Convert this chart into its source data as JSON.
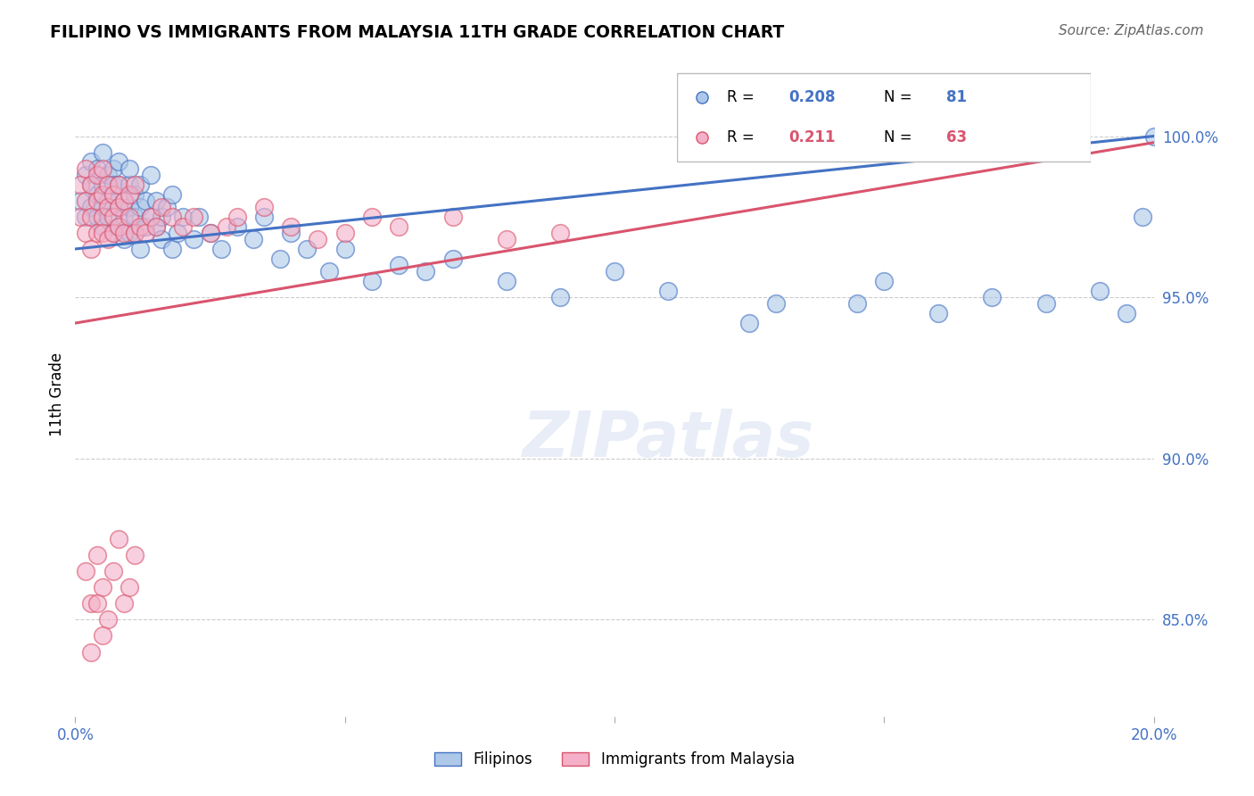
{
  "title": "FILIPINO VS IMMIGRANTS FROM MALAYSIA 11TH GRADE CORRELATION CHART",
  "source": "Source: ZipAtlas.com",
  "ylabel": "11th Grade",
  "xmin": 0.0,
  "xmax": 0.2,
  "ymin": 82.0,
  "ymax": 102.0,
  "blue_R": 0.208,
  "blue_N": 81,
  "pink_R": 0.211,
  "pink_N": 63,
  "blue_color": "#adc8e8",
  "pink_color": "#f4b0c8",
  "blue_line_color": "#4472c4",
  "pink_line_color": "#d9546e",
  "legend_blue_label": "Filipinos",
  "legend_pink_label": "Immigrants from Malaysia",
  "blue_line_x0": 0.0,
  "blue_line_y0": 96.5,
  "blue_line_x1": 0.2,
  "blue_line_y1": 100.0,
  "pink_line_x0": 0.0,
  "pink_line_y0": 94.2,
  "pink_line_x1": 0.2,
  "pink_line_y1": 99.8,
  "blue_scatter_x": [
    0.001,
    0.002,
    0.002,
    0.003,
    0.003,
    0.003,
    0.004,
    0.004,
    0.004,
    0.005,
    0.005,
    0.005,
    0.005,
    0.006,
    0.006,
    0.006,
    0.007,
    0.007,
    0.007,
    0.007,
    0.008,
    0.008,
    0.008,
    0.008,
    0.009,
    0.009,
    0.009,
    0.01,
    0.01,
    0.01,
    0.01,
    0.011,
    0.011,
    0.011,
    0.012,
    0.012,
    0.012,
    0.013,
    0.013,
    0.014,
    0.014,
    0.015,
    0.015,
    0.016,
    0.016,
    0.017,
    0.018,
    0.018,
    0.019,
    0.02,
    0.022,
    0.023,
    0.025,
    0.027,
    0.03,
    0.033,
    0.035,
    0.038,
    0.04,
    0.043,
    0.047,
    0.05,
    0.055,
    0.06,
    0.065,
    0.07,
    0.08,
    0.09,
    0.1,
    0.11,
    0.13,
    0.15,
    0.16,
    0.17,
    0.18,
    0.19,
    0.195,
    0.198,
    0.2,
    0.125,
    0.145
  ],
  "blue_scatter_y": [
    98.0,
    98.8,
    97.5,
    99.2,
    98.5,
    97.8,
    98.2,
    97.5,
    99.0,
    97.8,
    98.5,
    97.2,
    99.5,
    98.0,
    97.5,
    98.8,
    98.2,
    97.0,
    99.0,
    98.5,
    97.8,
    98.5,
    97.2,
    99.2,
    97.5,
    98.0,
    96.8,
    97.8,
    98.5,
    97.0,
    99.0,
    97.5,
    98.2,
    97.0,
    97.8,
    98.5,
    96.5,
    97.2,
    98.0,
    97.5,
    98.8,
    97.2,
    98.0,
    96.8,
    97.5,
    97.8,
    98.2,
    96.5,
    97.0,
    97.5,
    96.8,
    97.5,
    97.0,
    96.5,
    97.2,
    96.8,
    97.5,
    96.2,
    97.0,
    96.5,
    95.8,
    96.5,
    95.5,
    96.0,
    95.8,
    96.2,
    95.5,
    95.0,
    95.8,
    95.2,
    94.8,
    95.5,
    94.5,
    95.0,
    94.8,
    95.2,
    94.5,
    97.5,
    100.0,
    94.2,
    94.8
  ],
  "pink_scatter_x": [
    0.001,
    0.001,
    0.002,
    0.002,
    0.002,
    0.003,
    0.003,
    0.003,
    0.004,
    0.004,
    0.004,
    0.005,
    0.005,
    0.005,
    0.005,
    0.006,
    0.006,
    0.006,
    0.007,
    0.007,
    0.007,
    0.008,
    0.008,
    0.008,
    0.009,
    0.009,
    0.01,
    0.01,
    0.011,
    0.011,
    0.012,
    0.013,
    0.014,
    0.015,
    0.016,
    0.018,
    0.02,
    0.022,
    0.025,
    0.028,
    0.03,
    0.035,
    0.04,
    0.045,
    0.05,
    0.055,
    0.06,
    0.07,
    0.08,
    0.09,
    0.002,
    0.003,
    0.004,
    0.005,
    0.006,
    0.007,
    0.008,
    0.009,
    0.01,
    0.011,
    0.003,
    0.004,
    0.005
  ],
  "pink_scatter_y": [
    98.5,
    97.5,
    99.0,
    98.0,
    97.0,
    98.5,
    97.5,
    96.5,
    98.0,
    97.0,
    98.8,
    97.5,
    98.2,
    97.0,
    99.0,
    97.8,
    98.5,
    96.8,
    97.5,
    98.2,
    97.0,
    97.8,
    98.5,
    97.2,
    97.0,
    98.0,
    97.5,
    98.2,
    97.0,
    98.5,
    97.2,
    97.0,
    97.5,
    97.2,
    97.8,
    97.5,
    97.2,
    97.5,
    97.0,
    97.2,
    97.5,
    97.8,
    97.2,
    96.8,
    97.0,
    97.5,
    97.2,
    97.5,
    96.8,
    97.0,
    86.5,
    85.5,
    87.0,
    86.0,
    85.0,
    86.5,
    87.5,
    85.5,
    86.0,
    87.0,
    84.0,
    85.5,
    84.5
  ]
}
